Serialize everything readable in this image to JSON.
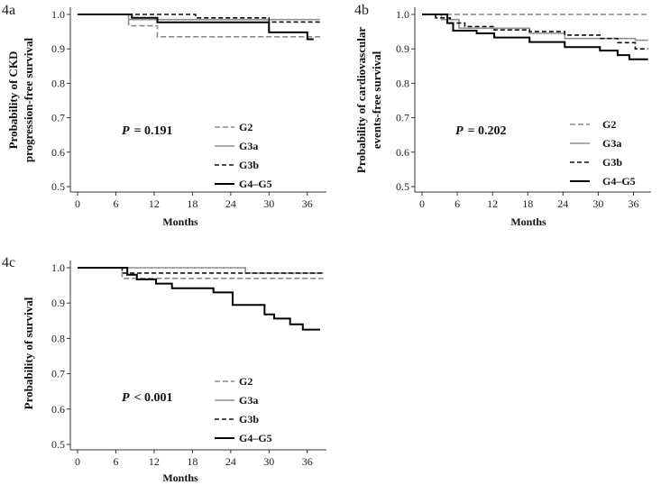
{
  "legend": {
    "g2": "G2",
    "g3a": "G3a",
    "g3b": "G3b",
    "g4": "G4–G5"
  },
  "colors": {
    "g2": "#8a8a8a",
    "g3a": "#8f8f8f",
    "g3b": "#111111",
    "g4": "#000000"
  },
  "chart_data": [
    {
      "panel": "4a",
      "type": "line",
      "title": "",
      "xlabel": "Months",
      "ylabel": [
        "Probability of CKD",
        "progression-free survival"
      ],
      "xticks": [
        "0",
        "6",
        "12",
        "18",
        "24",
        "30",
        "36"
      ],
      "yticks": [
        "0.5",
        "0.6",
        "0.7",
        "0.8",
        "0.9",
        "1.0"
      ],
      "xlim": [
        0,
        39
      ],
      "ylim": [
        0.5,
        1.0
      ],
      "annotation": {
        "p": "P",
        "text": "= 0.191"
      },
      "series": [
        {
          "name": "G2",
          "key": "g2",
          "style": "dashed",
          "x": [
            0,
            7.5,
            8,
            12,
            12.5,
            38
          ],
          "y": [
            1.0,
            1.0,
            0.967,
            0.967,
            0.935,
            0.935
          ]
        },
        {
          "name": "G3a",
          "key": "g3a",
          "style": "solid",
          "x": [
            0,
            7.8,
            8,
            38
          ],
          "y": [
            1.0,
            1.0,
            0.985,
            0.985
          ]
        },
        {
          "name": "G3b",
          "key": "g3b",
          "style": "dashed",
          "x": [
            0,
            7,
            7.5,
            18,
            18.5,
            29.5,
            30,
            38
          ],
          "y": [
            1.0,
            1.0,
            1.0,
            1.0,
            0.99,
            0.99,
            0.978,
            0.978
          ]
        },
        {
          "name": "G4–G5",
          "key": "g4",
          "style": "solid",
          "x": [
            0,
            8,
            8.5,
            12,
            12.5,
            29.5,
            30,
            35.5,
            36,
            37
          ],
          "y": [
            1.0,
            1.0,
            0.99,
            0.99,
            0.977,
            0.977,
            0.948,
            0.948,
            0.928,
            0.928
          ]
        }
      ]
    },
    {
      "panel": "4b",
      "type": "line",
      "title": "",
      "xlabel": "Months",
      "ylabel": [
        "Probability of  cardiovascular",
        "events-free survival"
      ],
      "xticks": [
        "0",
        "6",
        "12",
        "18",
        "24",
        "30",
        "36"
      ],
      "yticks": [
        "0.5",
        "0.6",
        "0.7",
        "0.8",
        "0.9",
        "1.0"
      ],
      "xlim": [
        0,
        39
      ],
      "ylim": [
        0.5,
        1.0
      ],
      "annotation": {
        "p": "P",
        "text": "= 0.202"
      },
      "series": [
        {
          "name": "G2",
          "key": "g2",
          "style": "dashed",
          "x": [
            0,
            38.5
          ],
          "y": [
            1.0,
            1.0
          ]
        },
        {
          "name": "G3a",
          "key": "g3a",
          "style": "solid",
          "x": [
            0,
            3,
            3.3,
            6,
            6.3,
            18,
            18.3,
            24,
            24.3,
            36,
            36.3,
            38.5
          ],
          "y": [
            1.0,
            1.0,
            0.985,
            0.985,
            0.96,
            0.96,
            0.945,
            0.945,
            0.93,
            0.93,
            0.925,
            0.925
          ]
        },
        {
          "name": "G3b",
          "key": "g3b",
          "style": "dashed",
          "x": [
            0,
            2,
            2.3,
            4.5,
            4.8,
            7,
            7.3,
            12,
            12.3,
            18,
            18.3,
            24,
            24.3,
            30,
            30.3,
            33,
            33.3,
            36,
            36.3,
            38.5
          ],
          "y": [
            1.0,
            1.0,
            0.99,
            0.99,
            0.975,
            0.975,
            0.965,
            0.965,
            0.955,
            0.955,
            0.95,
            0.95,
            0.94,
            0.94,
            0.93,
            0.93,
            0.918,
            0.918,
            0.9,
            0.9
          ]
        },
        {
          "name": "G4–G5",
          "key": "g4",
          "style": "solid",
          "x": [
            0,
            4,
            4.3,
            5,
            5.3,
            9,
            9.3,
            12,
            12.3,
            18,
            18.3,
            24,
            24.3,
            30,
            30.3,
            33,
            33.3,
            35,
            35.3,
            38.5
          ],
          "y": [
            1.0,
            1.0,
            0.975,
            0.975,
            0.953,
            0.953,
            0.945,
            0.945,
            0.933,
            0.933,
            0.92,
            0.92,
            0.905,
            0.905,
            0.895,
            0.895,
            0.882,
            0.882,
            0.87,
            0.87
          ]
        }
      ]
    },
    {
      "panel": "4c",
      "type": "line",
      "title": "",
      "xlabel": "Months",
      "ylabel": [
        "Probability of survival"
      ],
      "xticks": [
        "0",
        "6",
        "12",
        "18",
        "24",
        "30",
        "36"
      ],
      "yticks": [
        "0.5",
        "0.6",
        "0.7",
        "0.8",
        "0.9",
        "1.0"
      ],
      "xlim": [
        0,
        39
      ],
      "ylim": [
        0.5,
        1.0
      ],
      "annotation": {
        "p": "P",
        "text": "< 0.001"
      },
      "series": [
        {
          "name": "G2",
          "key": "g2",
          "style": "dashed",
          "x": [
            0,
            6.5,
            7,
            38.5
          ],
          "y": [
            1.0,
            1.0,
            0.97,
            0.97
          ]
        },
        {
          "name": "G3a",
          "key": "g3a",
          "style": "solid",
          "x": [
            0,
            26,
            26.3,
            38.5
          ],
          "y": [
            1.0,
            1.0,
            0.985,
            0.985
          ]
        },
        {
          "name": "G3b",
          "key": "g3b",
          "style": "dashed",
          "x": [
            0,
            6.5,
            7,
            38.5
          ],
          "y": [
            1.0,
            1.0,
            0.985,
            0.985
          ]
        },
        {
          "name": "G4–G5",
          "key": "g4",
          "style": "solid",
          "x": [
            0,
            7.5,
            7.8,
            9,
            9.3,
            12,
            12.3,
            14.5,
            14.8,
            21,
            21.3,
            24,
            24.3,
            29,
            29.3,
            30.5,
            30.8,
            33,
            33.3,
            35,
            35.3,
            38
          ],
          "y": [
            1.0,
            1.0,
            0.98,
            0.98,
            0.967,
            0.967,
            0.955,
            0.955,
            0.942,
            0.942,
            0.93,
            0.93,
            0.895,
            0.895,
            0.868,
            0.868,
            0.856,
            0.856,
            0.84,
            0.84,
            0.825,
            0.825
          ]
        }
      ]
    }
  ]
}
